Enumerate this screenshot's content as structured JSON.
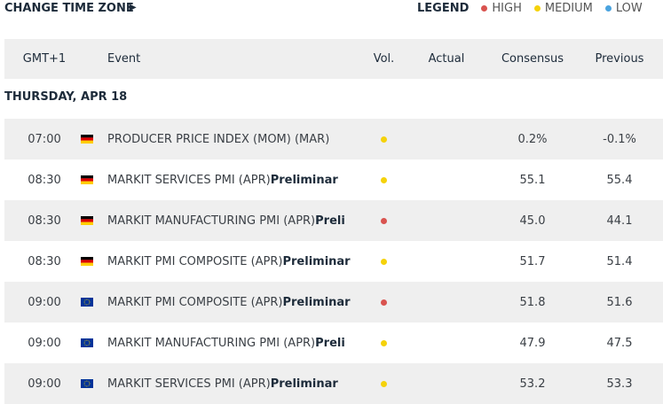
{
  "header": {
    "change_time_zone": "CHANGE TIME ZONE",
    "arrow": "▶",
    "legend": {
      "title": "LEGEND",
      "items": [
        {
          "label": "HIGH",
          "color": "#d9534f"
        },
        {
          "label": "MEDIUM",
          "color": "#f5d20a"
        },
        {
          "label": "LOW",
          "color": "#4aa3df"
        }
      ]
    }
  },
  "table": {
    "columns": [
      "GMT+1",
      "Event",
      "Vol.",
      "Actual",
      "Consensus",
      "Previous"
    ],
    "date": "THURSDAY, APR 18",
    "rows": [
      {
        "time": "07:00",
        "flag": "de",
        "event": "PRODUCER PRICE INDEX (MOM) (MAR)",
        "suffix": null,
        "vol": "MEDIUM",
        "consensus": "0.2%",
        "previous": "-0.1%"
      },
      {
        "time": "08:30",
        "flag": "de",
        "event": "MARKIT SERVICES PMI (APR)",
        "suffix": "Preliminar",
        "vol": "MEDIUM",
        "consensus": "55.1",
        "previous": "55.4"
      },
      {
        "time": "08:30",
        "flag": "de",
        "event": "MARKIT MANUFACTURING PMI (APR)",
        "suffix": "Preli",
        "vol": "HIGH",
        "consensus": "45.0",
        "previous": "44.1"
      },
      {
        "time": "08:30",
        "flag": "de",
        "event": "MARKIT PMI COMPOSITE (APR)",
        "suffix": "Preliminar",
        "vol": "MEDIUM",
        "consensus": "51.7",
        "previous": "51.4"
      },
      {
        "time": "09:00",
        "flag": "eu",
        "event": "MARKIT PMI COMPOSITE (APR)",
        "suffix": "Preliminar",
        "vol": "HIGH",
        "consensus": "51.8",
        "previous": "51.6"
      },
      {
        "time": "09:00",
        "flag": "eu",
        "event": "MARKIT MANUFACTURING PMI (APR)",
        "suffix": "Preli",
        "vol": "MEDIUM",
        "consensus": "47.9",
        "previous": "47.5"
      },
      {
        "time": "09:00",
        "flag": "eu",
        "event": "MARKIT SERVICES PMI (APR)",
        "suffix": "Preliminar",
        "vol": "MEDIUM",
        "consensus": "53.2",
        "previous": "53.3"
      }
    ]
  }
}
